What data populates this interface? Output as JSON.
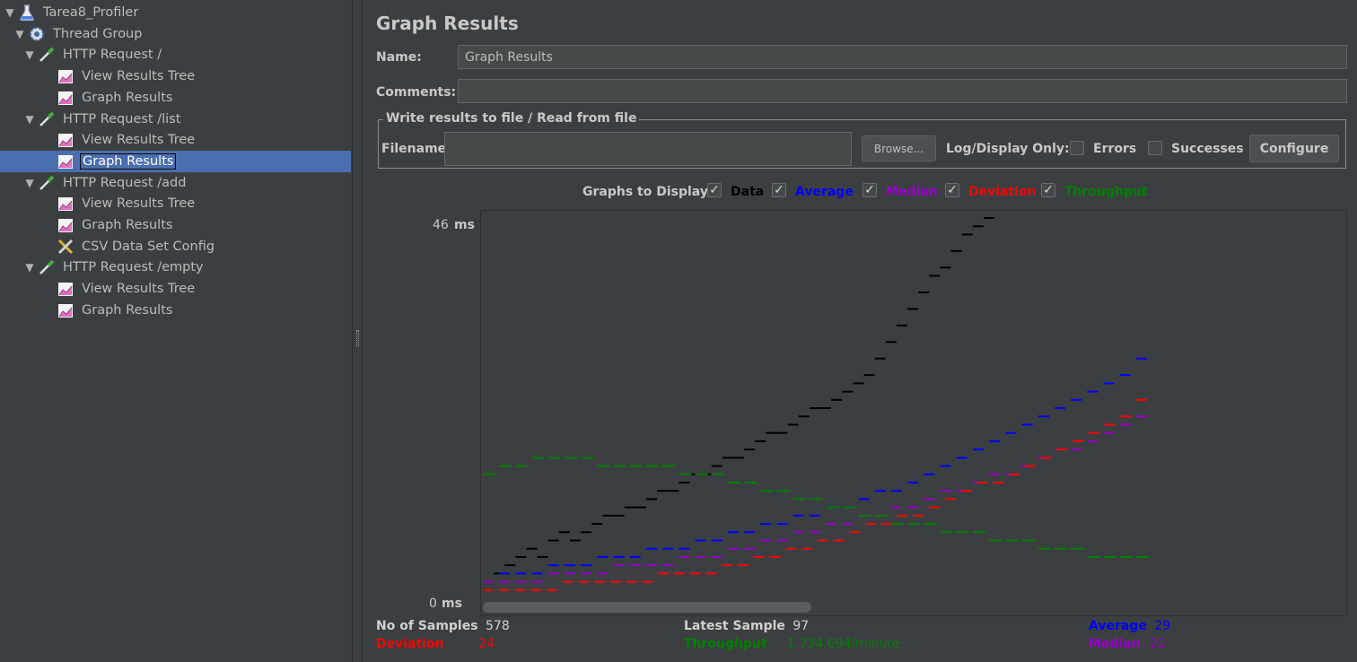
{
  "tree": {
    "items": [
      {
        "label": "Tarea8_Profiler",
        "icon": "test-plan-flask-icon",
        "level": 0,
        "expanded": true,
        "selected": false
      },
      {
        "label": "Thread Group",
        "icon": "thread-group-gear-icon",
        "level": 1,
        "expanded": true,
        "selected": false
      },
      {
        "label": "HTTP Request /",
        "icon": "sampler-pipette-icon",
        "level": 2,
        "expanded": true,
        "selected": false
      },
      {
        "label": "View Results Tree",
        "icon": "listener-chart-icon",
        "level": 3,
        "expanded": null,
        "selected": false
      },
      {
        "label": "Graph Results",
        "icon": "listener-chart-icon",
        "level": 3,
        "expanded": null,
        "selected": false
      },
      {
        "label": "HTTP Request /list",
        "icon": "sampler-pipette-icon",
        "level": 2,
        "expanded": true,
        "selected": false
      },
      {
        "label": "View Results Tree",
        "icon": "listener-chart-icon",
        "level": 3,
        "expanded": null,
        "selected": false
      },
      {
        "label": "Graph Results",
        "icon": "listener-chart-icon",
        "level": 3,
        "expanded": null,
        "selected": true
      },
      {
        "label": "HTTP Request /add",
        "icon": "sampler-pipette-icon",
        "level": 2,
        "expanded": true,
        "selected": false
      },
      {
        "label": "View Results Tree",
        "icon": "listener-chart-icon",
        "level": 3,
        "expanded": null,
        "selected": false
      },
      {
        "label": "Graph Results",
        "icon": "listener-chart-icon",
        "level": 3,
        "expanded": null,
        "selected": false
      },
      {
        "label": "CSV Data Set Config",
        "icon": "config-tools-icon",
        "level": 3,
        "expanded": null,
        "selected": false
      },
      {
        "label": "HTTP Request /empty",
        "icon": "sampler-pipette-icon",
        "level": 2,
        "expanded": true,
        "selected": false
      },
      {
        "label": "View Results Tree",
        "icon": "listener-chart-icon",
        "level": 3,
        "expanded": null,
        "selected": false
      },
      {
        "label": "Graph Results",
        "icon": "listener-chart-icon",
        "level": 3,
        "expanded": null,
        "selected": false
      }
    ]
  },
  "panel": {
    "title": "Graph Results",
    "name_label": "Name:",
    "name_value": "Graph Results",
    "comments_label": "Comments:",
    "comments_value": "",
    "file_group_title": "Write results to file / Read from file",
    "filename_label": "Filename",
    "filename_value": "",
    "browse_label": "Browse...",
    "log_display_label": "Log/Display Only:",
    "errors_label": "Errors",
    "errors_checked": false,
    "successes_label": "Successes",
    "successes_checked": false,
    "configure_label": "Configure"
  },
  "graphs_to_display": {
    "label": "Graphs to Display",
    "options": [
      {
        "label": "Data",
        "checked": true,
        "color": "#000000"
      },
      {
        "label": "Average",
        "checked": true,
        "color": "#0000ff"
      },
      {
        "label": "Median",
        "checked": true,
        "color": "#9900cc"
      },
      {
        "label": "Deviation",
        "checked": true,
        "color": "#ff0000"
      },
      {
        "label": "Throughput",
        "checked": true,
        "color": "#008000"
      }
    ]
  },
  "graph": {
    "y_max_label": "46",
    "y_min_label": "0",
    "unit": "ms"
  },
  "chart_data": {
    "type": "scatter",
    "ylim": [
      0,
      46
    ],
    "yunit": "ms",
    "samples": 578,
    "series": [
      {
        "name": "Data",
        "color": "#000000",
        "values": [
          1,
          3,
          4,
          5,
          6,
          5,
          7,
          8,
          7,
          8,
          9,
          10,
          10,
          11,
          11,
          12,
          13,
          13,
          14,
          15,
          15,
          16,
          17,
          17,
          18,
          19,
          20,
          20,
          21,
          22,
          23,
          23,
          24,
          25,
          26,
          27,
          29,
          31,
          33,
          35,
          37,
          39,
          40,
          42,
          44,
          45,
          46
        ]
      },
      {
        "name": "Average",
        "color": "#0000ff",
        "values": [
          2,
          3,
          3,
          3,
          4,
          4,
          4,
          5,
          5,
          5,
          6,
          6,
          6,
          7,
          7,
          8,
          8,
          9,
          9,
          10,
          10,
          11,
          11,
          12,
          13,
          13,
          14,
          15,
          16,
          17,
          18,
          19,
          20,
          21,
          22,
          23,
          24,
          25,
          26,
          27,
          29
        ]
      },
      {
        "name": "Median",
        "color": "#9900cc",
        "values": [
          2,
          2,
          2,
          2,
          3,
          3,
          3,
          3,
          4,
          4,
          4,
          4,
          5,
          5,
          5,
          6,
          6,
          7,
          7,
          8,
          8,
          9,
          9,
          10,
          10,
          11,
          11,
          12,
          13,
          13,
          14,
          15,
          15,
          16,
          17,
          18,
          18,
          19,
          20,
          21,
          22
        ]
      },
      {
        "name": "Deviation",
        "color": "#ff0000",
        "values": [
          1,
          1,
          1,
          1,
          1,
          2,
          2,
          2,
          2,
          2,
          2,
          3,
          3,
          3,
          3,
          4,
          4,
          5,
          5,
          6,
          6,
          7,
          7,
          8,
          9,
          9,
          10,
          10,
          11,
          12,
          13,
          14,
          14,
          15,
          16,
          17,
          18,
          19,
          20,
          21,
          22,
          24
        ]
      },
      {
        "name": "Throughput",
        "color": "#008000",
        "values": [
          15,
          16,
          16,
          17,
          17,
          17,
          17,
          16,
          16,
          16,
          16,
          16,
          15,
          15,
          15,
          14,
          14,
          13,
          13,
          12,
          12,
          11,
          11,
          10,
          10,
          9,
          9,
          9,
          8,
          8,
          8,
          7,
          7,
          7,
          6,
          6,
          6,
          5,
          5,
          5,
          5
        ]
      }
    ]
  },
  "stats": {
    "samples_label": "No of Samples",
    "samples_value": "578",
    "latest_label": "Latest Sample",
    "latest_value": "97",
    "average_label": "Average",
    "average_value": "29",
    "deviation_label": "Deviation",
    "deviation_value": "24",
    "throughput_label": "Throughput",
    "throughput_value": "1,734.694/minute",
    "median_label": "Median",
    "median_value": "22"
  },
  "colors": {
    "background": "#3c3f41",
    "selection": "#4b6eaf",
    "average": "#0000ff",
    "median": "#9900cc",
    "deviation": "#ff0000",
    "throughput": "#008000"
  }
}
